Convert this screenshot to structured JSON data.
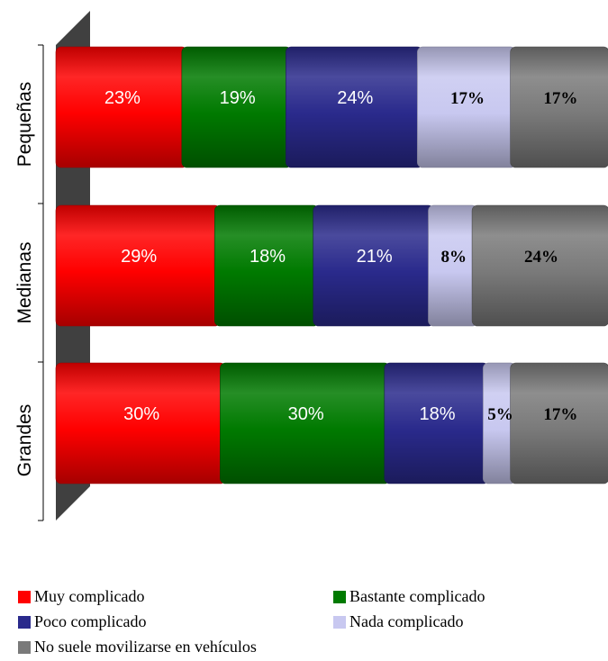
{
  "chart_data": {
    "type": "bar",
    "stacked": true,
    "orientation": "horizontal",
    "unit": "%",
    "categories": [
      "Pequeñas",
      "Medianas",
      "Grandes"
    ],
    "series": [
      {
        "name": "Muy complicado",
        "color": "#ff0000",
        "values": [
          23,
          29,
          30
        ]
      },
      {
        "name": "Bastante complicado",
        "color": "#007a00",
        "values": [
          19,
          18,
          30
        ]
      },
      {
        "name": "Poco complicado",
        "color": "#2a2a8c",
        "values": [
          24,
          21,
          18
        ]
      },
      {
        "name": "Nada complicado",
        "color": "#c8c8f0",
        "values": [
          17,
          8,
          5
        ]
      },
      {
        "name": "No suele movilizarse en vehículos",
        "color": "#7a7a7a",
        "values": [
          17,
          24,
          17
        ]
      }
    ],
    "data_labels": [
      [
        "23%",
        "19%",
        "24%",
        "17%",
        "17%"
      ],
      [
        "29%",
        "18%",
        "21%",
        "8%",
        "24%"
      ],
      [
        "30%",
        "30%",
        "18%",
        "5%",
        "17%"
      ]
    ],
    "legend_position": "bottom",
    "grid": false
  }
}
